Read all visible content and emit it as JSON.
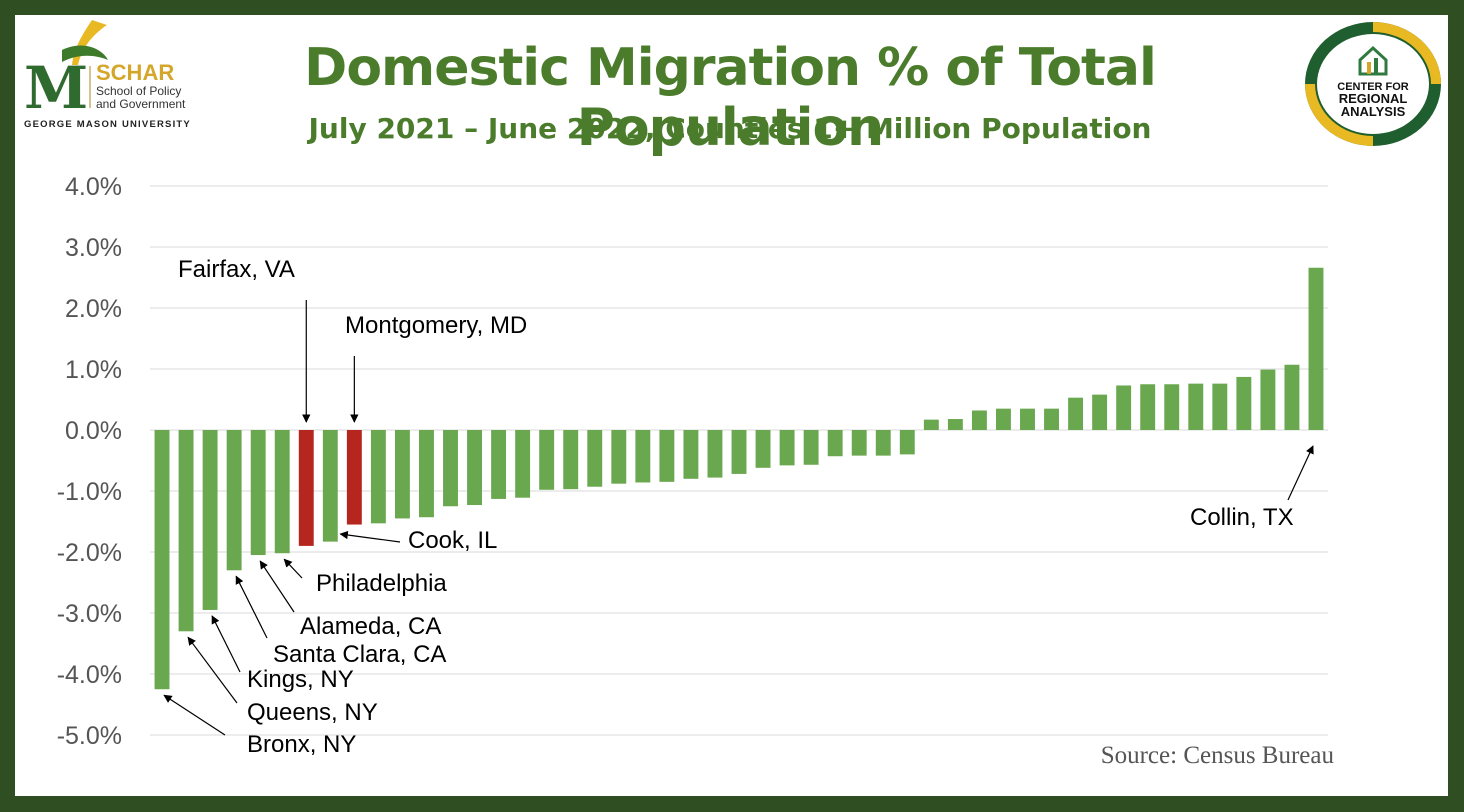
{
  "logo_left": {
    "name": "SCHAR",
    "line1": "School of Policy",
    "line2": "and Government",
    "university": "GEORGE MASON UNIVERSITY"
  },
  "logo_right": {
    "line1": "CENTER FOR",
    "line2": "REGIONAL",
    "line3": "ANALYSIS"
  },
  "colors": {
    "background": "#2f4f22",
    "green_bar": "#6aa84f",
    "red_bar": "#b5271e",
    "title": "#4a7c2c"
  },
  "source": "Source: Census Bureau",
  "chart_data": {
    "type": "bar",
    "title": "Domestic Migration % of Total Population",
    "subtitle": "July 2021 – June 2022, Counties 1+ Million Population",
    "ylim": [
      -5.0,
      4.0
    ],
    "yticks": [
      "4.0%",
      "3.0%",
      "2.0%",
      "1.0%",
      "0.0%",
      "-1.0%",
      "-2.0%",
      "-3.0%",
      "-4.0%",
      "-5.0%"
    ],
    "grid": true,
    "values": [
      -4.25,
      -3.3,
      -2.95,
      -2.3,
      -2.05,
      -2.02,
      -1.9,
      -1.83,
      -1.55,
      -1.53,
      -1.45,
      -1.43,
      -1.25,
      -1.23,
      -1.13,
      -1.11,
      -0.98,
      -0.97,
      -0.93,
      -0.88,
      -0.86,
      -0.85,
      -0.8,
      -0.78,
      -0.72,
      -0.62,
      -0.58,
      -0.57,
      -0.43,
      -0.42,
      -0.42,
      -0.4,
      0.17,
      0.18,
      0.32,
      0.35,
      0.35,
      0.35,
      0.53,
      0.58,
      0.73,
      0.75,
      0.75,
      0.76,
      0.76,
      0.87,
      0.99,
      1.07,
      2.66
    ],
    "highlighted": [
      6,
      8
    ],
    "annotations": [
      {
        "label": "Bronx, NY",
        "index": 0
      },
      {
        "label": "Queens, NY",
        "index": 1
      },
      {
        "label": "Kings, NY",
        "index": 2
      },
      {
        "label": "Santa Clara, CA",
        "index": 3
      },
      {
        "label": "Alameda, CA",
        "index": 4
      },
      {
        "label": "Philadelphia",
        "index": 5
      },
      {
        "label": "Fairfax, VA",
        "index": 6
      },
      {
        "label": "Cook, IL",
        "index": 7
      },
      {
        "label": "Montgomery, MD",
        "index": 8
      },
      {
        "label": "Collin, TX",
        "index": 48
      }
    ]
  }
}
